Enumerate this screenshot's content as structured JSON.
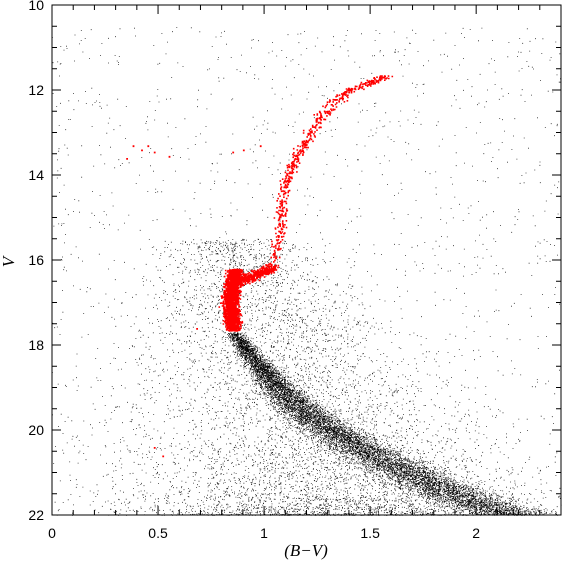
{
  "chart_data": {
    "type": "scatter",
    "title": "",
    "xlabel": "(B−V)",
    "ylabel": "V",
    "xlim": [
      0,
      2.4
    ],
    "ylim": [
      22,
      10
    ],
    "y_inverted": true,
    "grid": false,
    "legend": "none",
    "x_ticks": [
      "0",
      "0.5",
      "1",
      "1.5",
      "2"
    ],
    "y_ticks": [
      "10",
      "12",
      "14",
      "16",
      "18",
      "20",
      "22"
    ],
    "colors": {
      "field_stars": "#000000",
      "selected_stars": "#ff0000",
      "axes": "#000000"
    },
    "series": [
      {
        "color": "#000000",
        "description_points": "main sequence ridge (B-V, V)",
        "ridge": [
          [
            0.86,
            17.7
          ],
          [
            0.93,
            18.2
          ],
          [
            1.0,
            18.6
          ],
          [
            1.07,
            19.0
          ],
          [
            1.15,
            19.4
          ],
          [
            1.25,
            19.8
          ],
          [
            1.38,
            20.2
          ],
          [
            1.52,
            20.6
          ],
          [
            1.68,
            21.0
          ],
          [
            1.85,
            21.4
          ],
          [
            2.05,
            21.8
          ],
          [
            2.2,
            22.0
          ]
        ]
      },
      {
        "color": "#ff0000",
        "turnoff_clump": [
          [
            0.78,
            16.3
          ],
          [
            0.8,
            16.7
          ],
          [
            0.82,
            17.0
          ],
          [
            0.84,
            17.3
          ],
          [
            0.86,
            17.6
          ],
          [
            0.88,
            17.1
          ],
          [
            0.9,
            16.6
          ]
        ],
        "subgiant_branch": [
          [
            0.92,
            16.4
          ],
          [
            0.98,
            16.3
          ],
          [
            1.03,
            16.2
          ]
        ],
        "red_giant_branch": [
          [
            1.05,
            16.0
          ],
          [
            1.07,
            15.4
          ],
          [
            1.08,
            14.8
          ],
          [
            1.1,
            14.2
          ],
          [
            1.13,
            13.8
          ],
          [
            1.17,
            13.4
          ],
          [
            1.22,
            13.0
          ],
          [
            1.27,
            12.6
          ],
          [
            1.33,
            12.3
          ],
          [
            1.4,
            12.0
          ],
          [
            1.5,
            11.8
          ],
          [
            1.58,
            11.65
          ]
        ],
        "horizontal_branch": [
          [
            0.35,
            13.6
          ],
          [
            0.38,
            13.3
          ],
          [
            0.42,
            13.4
          ],
          [
            0.45,
            13.3
          ],
          [
            0.48,
            13.45
          ],
          [
            0.55,
            13.55
          ],
          [
            0.85,
            13.45
          ],
          [
            0.9,
            13.4
          ],
          [
            0.98,
            13.3
          ]
        ],
        "outliers": [
          [
            0.68,
            17.6
          ],
          [
            0.48,
            20.4
          ],
          [
            0.52,
            20.6
          ]
        ]
      }
    ]
  }
}
